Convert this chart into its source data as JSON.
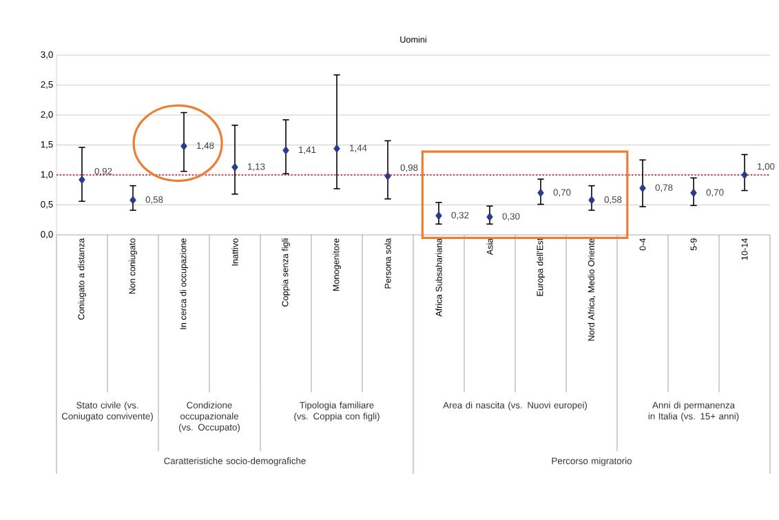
{
  "chart_data": {
    "type": "scatter",
    "title": "Uomini",
    "categories": [
      "Coniugato a distanza",
      "Non coniugato",
      "In cerca di occupazione",
      "Inattivo",
      "Coppia senza figli",
      "Monogenitore",
      "Persona sola",
      "Africa Subsahariana",
      "Asia",
      "Europa dell'Est",
      "Nord Africa, Medio Oriente",
      "0-4",
      "5-9",
      "10-14"
    ],
    "series": [
      {
        "color": "#2b3a8c",
        "values": [
          0.92,
          0.58,
          1.48,
          1.13,
          1.41,
          1.44,
          0.98,
          0.32,
          0.3,
          0.7,
          0.58,
          0.78,
          0.7,
          1.0
        ],
        "errors": [
          [
            0.56,
            1.46
          ],
          [
            0.41,
            0.82
          ],
          [
            1.06,
            2.04
          ],
          [
            0.68,
            1.83
          ],
          [
            1.02,
            1.92
          ],
          [
            0.77,
            2.67
          ],
          [
            0.6,
            1.57
          ],
          [
            0.18,
            0.54
          ],
          [
            0.18,
            0.48
          ],
          [
            0.51,
            0.93
          ],
          [
            0.41,
            0.82
          ],
          [
            0.47,
            1.25
          ],
          [
            0.49,
            0.95
          ],
          [
            0.74,
            1.34
          ]
        ],
        "value_labels": [
          "0,92",
          "0,58",
          "1,48",
          "1,13",
          "1,41",
          "1,44",
          "0,98",
          "0,32",
          "0,30",
          "0,70",
          "0,58",
          "0,78",
          "0,70",
          "1,00"
        ]
      }
    ],
    "ylim": [
      0,
      3
    ],
    "yticks": [
      {
        "value": 0,
        "label": "0,0"
      },
      {
        "value": 0.5,
        "label": "0,5"
      },
      {
        "value": 1,
        "label": "1,0"
      },
      {
        "value": 1.5,
        "label": "1,5"
      },
      {
        "value": 2,
        "label": "2,0"
      },
      {
        "value": 2.5,
        "label": "2,5"
      },
      {
        "value": 3,
        "label": "3,0"
      }
    ],
    "grid": "y",
    "marker": "diamond",
    "ref_lines": [
      {
        "axis": "y",
        "value": 1,
        "color": "#e8304f",
        "line_style": "dotted"
      }
    ],
    "annotations": [
      "Stato civile (vs. Coniugato convivente)",
      "Condizione occupazionale (vs. Occupato)",
      "Tipologia familiare (vs. Coppia con figli)",
      "Area di nascita (vs. Nuovi europei)",
      "Anni di permanenza in Italia (vs. 15+ anni)",
      "Caratteristiche socio-demografiche",
      "Percorso migratorio"
    ]
  }
}
